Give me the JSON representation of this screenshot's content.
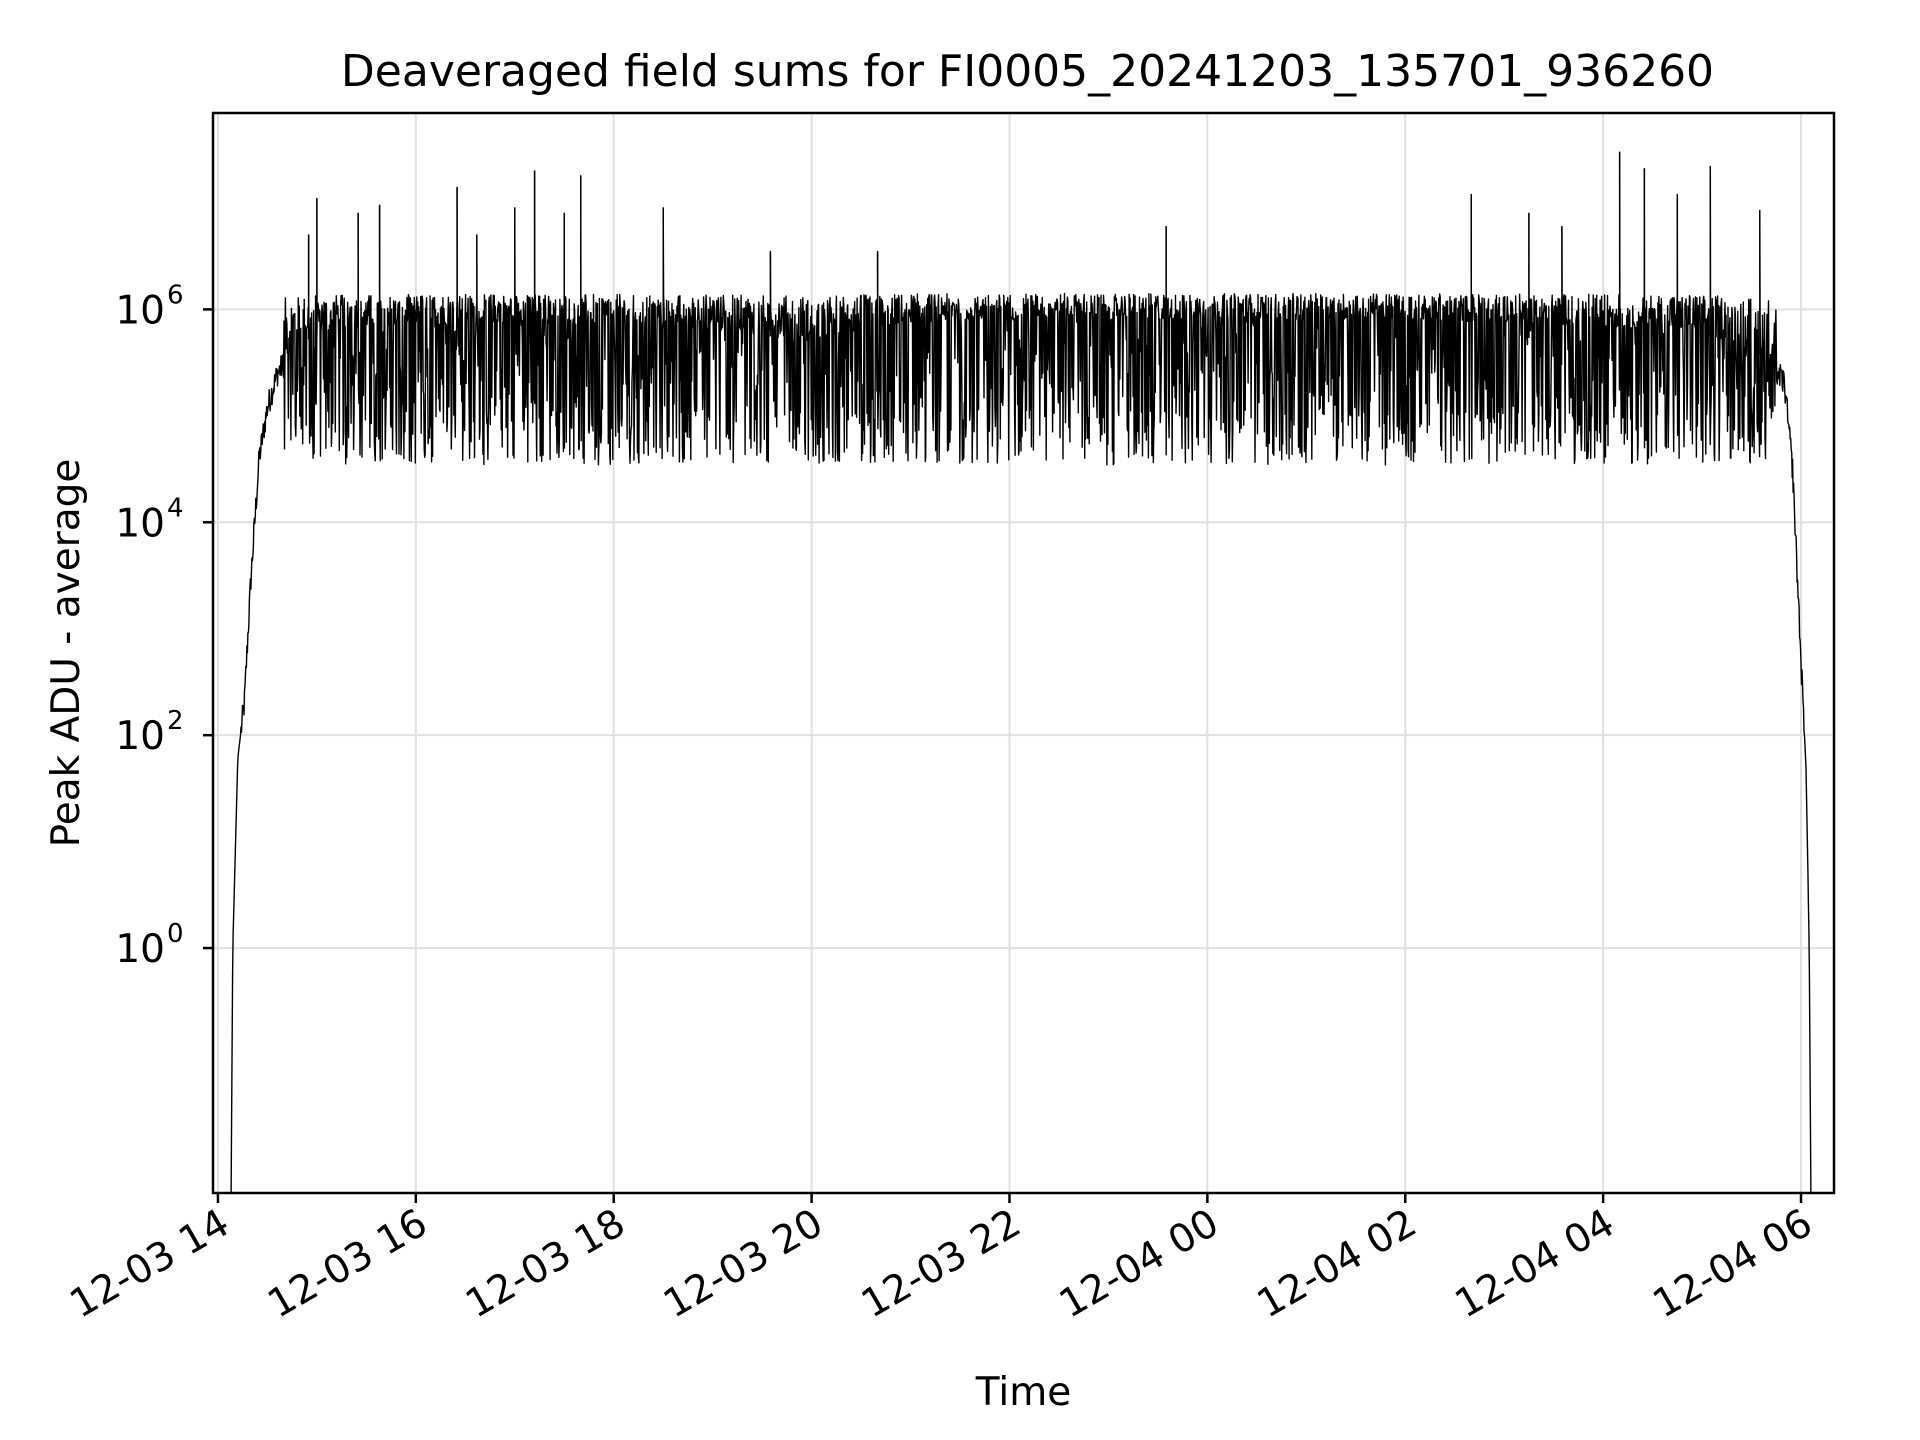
{
  "chart_data": {
    "type": "line",
    "title": "Deaveraged field sums for FI0005_20241203_135701_936260",
    "xlabel": "Time",
    "ylabel": "Peak ADU - average",
    "yscale": "log",
    "xlim": [
      "2024-12-03T13:57",
      "2024-12-04T06:20"
    ],
    "ylim": [
      0.005,
      70000000
    ],
    "grid": true,
    "x_ticks": [
      {
        "label": "12-03 14",
        "value": "2024-12-03T14:00"
      },
      {
        "label": "12-03 16",
        "value": "2024-12-03T16:00"
      },
      {
        "label": "12-03 18",
        "value": "2024-12-03T18:00"
      },
      {
        "label": "12-03 20",
        "value": "2024-12-03T20:00"
      },
      {
        "label": "12-03 22",
        "value": "2024-12-03T22:00"
      },
      {
        "label": "12-04 00",
        "value": "2024-12-04T00:00"
      },
      {
        "label": "12-04 02",
        "value": "2024-12-04T02:00"
      },
      {
        "label": "12-04 04",
        "value": "2024-12-04T04:00"
      },
      {
        "label": "12-04 06",
        "value": "2024-12-04T06:00"
      }
    ],
    "y_ticks": [
      {
        "base": "10",
        "exp": "0",
        "value": 1
      },
      {
        "base": "10",
        "exp": "2",
        "value": 100
      },
      {
        "base": "10",
        "exp": "4",
        "value": 10000
      },
      {
        "base": "10",
        "exp": "6",
        "value": 1000000
      }
    ],
    "series": [
      {
        "color": "#000000",
        "points": [
          {
            "x": "2024-12-03T14:08",
            "y": 0.005
          },
          {
            "x": "2024-12-03T14:09",
            "y": 1
          },
          {
            "x": "2024-12-03T14:12",
            "y": 60
          },
          {
            "x": "2024-12-03T14:16",
            "y": 200
          },
          {
            "x": "2024-12-03T14:20",
            "y": 3000
          },
          {
            "x": "2024-12-03T14:25",
            "y": 40000
          },
          {
            "x": "2024-12-03T14:30",
            "y": 120000
          },
          {
            "x": "2024-12-03T14:36",
            "y": 250000
          },
          {
            "x": "2024-12-03T14:45",
            "y": 400000
          },
          {
            "x": "2024-12-03T15:00",
            "y": 600000
          },
          {
            "x": "2024-12-03T16:00",
            "y": 700000
          },
          {
            "x": "2024-12-03T17:00",
            "y": 750000
          },
          {
            "x": "2024-12-03T18:00",
            "y": 700000
          },
          {
            "x": "2024-12-03T19:00",
            "y": 650000
          },
          {
            "x": "2024-12-03T20:00",
            "y": 500000
          },
          {
            "x": "2024-12-03T21:00",
            "y": 750000
          },
          {
            "x": "2024-12-03T22:00",
            "y": 800000
          },
          {
            "x": "2024-12-03T23:00",
            "y": 800000
          },
          {
            "x": "2024-12-04T00:00",
            "y": 800000
          },
          {
            "x": "2024-12-04T01:00",
            "y": 800000
          },
          {
            "x": "2024-12-04T02:00",
            "y": 800000
          },
          {
            "x": "2024-12-04T03:00",
            "y": 750000
          },
          {
            "x": "2024-12-04T04:00",
            "y": 700000
          },
          {
            "x": "2024-12-04T05:00",
            "y": 600000
          },
          {
            "x": "2024-12-04T05:40",
            "y": 350000
          },
          {
            "x": "2024-12-04T05:50",
            "y": 200000
          },
          {
            "x": "2024-12-04T05:55",
            "y": 30000
          },
          {
            "x": "2024-12-04T06:00",
            "y": 500
          },
          {
            "x": "2024-12-04T06:03",
            "y": 50
          },
          {
            "x": "2024-12-04T06:05",
            "y": 1
          },
          {
            "x": "2024-12-04T06:06",
            "y": 0.005
          }
        ],
        "noise_range": [
          40000,
          1500000
        ],
        "spikes": [
          {
            "x": "2024-12-03T14:55",
            "y": 5000000
          },
          {
            "x": "2024-12-03T15:00",
            "y": 11000000
          },
          {
            "x": "2024-12-03T15:25",
            "y": 8000000
          },
          {
            "x": "2024-12-03T15:38",
            "y": 9500000
          },
          {
            "x": "2024-12-03T16:25",
            "y": 14000000
          },
          {
            "x": "2024-12-03T16:37",
            "y": 5000000
          },
          {
            "x": "2024-12-03T17:00",
            "y": 9000000
          },
          {
            "x": "2024-12-03T17:12",
            "y": 20000000
          },
          {
            "x": "2024-12-03T17:30",
            "y": 8000000
          },
          {
            "x": "2024-12-03T17:40",
            "y": 18000000
          },
          {
            "x": "2024-12-03T18:30",
            "y": 9000000
          },
          {
            "x": "2024-12-03T19:35",
            "y": 3500000
          },
          {
            "x": "2024-12-03T20:40",
            "y": 3500000
          },
          {
            "x": "2024-12-03T23:35",
            "y": 6000000
          },
          {
            "x": "2024-12-04T02:40",
            "y": 12000000
          },
          {
            "x": "2024-12-04T03:15",
            "y": 8000000
          },
          {
            "x": "2024-12-04T03:35",
            "y": 6000000
          },
          {
            "x": "2024-12-04T04:10",
            "y": 30000000
          },
          {
            "x": "2024-12-04T04:25",
            "y": 21000000
          },
          {
            "x": "2024-12-04T04:45",
            "y": 12000000
          },
          {
            "x": "2024-12-04T05:05",
            "y": 22000000
          },
          {
            "x": "2024-12-04T05:35",
            "y": 8500000
          }
        ]
      }
    ]
  }
}
